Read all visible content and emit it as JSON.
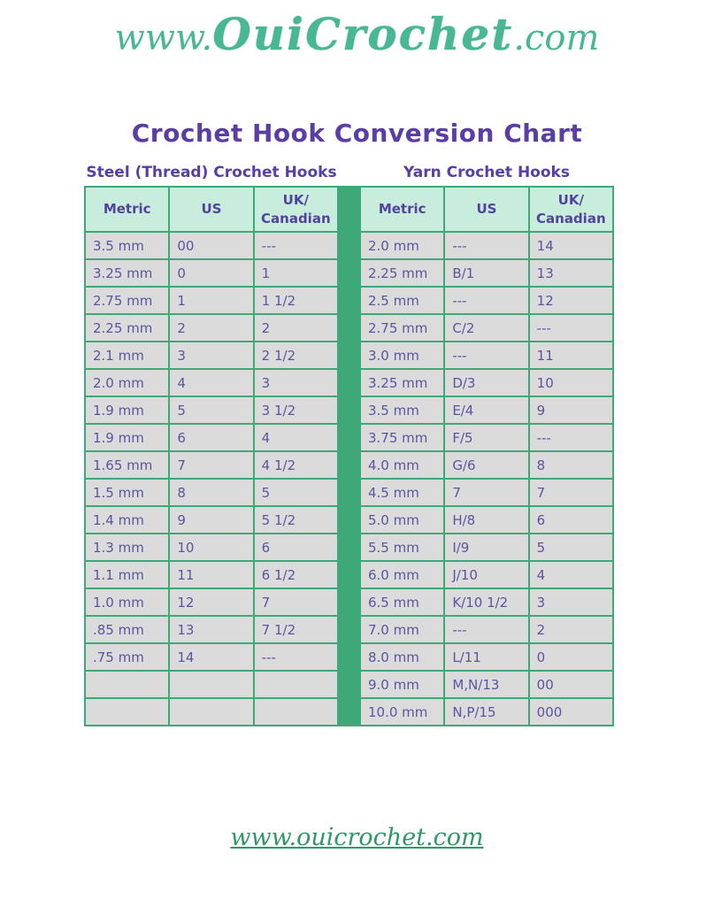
{
  "logo": {
    "www": "www.",
    "brand": "OuiCrochet",
    "com": ".com"
  },
  "title": "Crochet Hook Conversion Chart",
  "colors": {
    "green": "#3EA878",
    "mint": "#C9EDDC",
    "gray": "#DBDBDB",
    "purple": "#5A3DA5",
    "celltext": "#5B54A0",
    "headertext": "#52439E",
    "logoteal": "#47B794",
    "footergreen": "#2E9966"
  },
  "tables": [
    {
      "heading": "Steel (Thread) Crochet Hooks",
      "columns": [
        "Metric",
        "US",
        "UK/\nCanadian"
      ],
      "rows": [
        [
          "3.5 mm",
          "00",
          "---"
        ],
        [
          "3.25 mm",
          "0",
          "1"
        ],
        [
          "2.75 mm",
          "1",
          "1 1/2"
        ],
        [
          "2.25 mm",
          "2",
          "2"
        ],
        [
          "2.1 mm",
          "3",
          "2 1/2"
        ],
        [
          "2.0 mm",
          "4",
          "3"
        ],
        [
          "1.9 mm",
          "5",
          "3 1/2"
        ],
        [
          "1.9 mm",
          "6",
          "4"
        ],
        [
          "1.65 mm",
          "7",
          "4 1/2"
        ],
        [
          "1.5 mm",
          "8",
          "5"
        ],
        [
          "1.4 mm",
          "9",
          "5 1/2"
        ],
        [
          "1.3 mm",
          "10",
          "6"
        ],
        [
          "1.1 mm",
          "11",
          "6 1/2"
        ],
        [
          "1.0 mm",
          "12",
          "7"
        ],
        [
          ".85 mm",
          "13",
          "7 1/2"
        ],
        [
          ".75 mm",
          "14",
          "---"
        ],
        [
          "",
          "",
          ""
        ],
        [
          "",
          "",
          ""
        ]
      ]
    },
    {
      "heading": "Yarn Crochet Hooks",
      "columns": [
        "Metric",
        "US",
        "UK/\nCanadian"
      ],
      "rows": [
        [
          "2.0 mm",
          "---",
          "14"
        ],
        [
          "2.25 mm",
          "B/1",
          "13"
        ],
        [
          "2.5 mm",
          "---",
          "12"
        ],
        [
          "2.75 mm",
          "C/2",
          "---"
        ],
        [
          "3.0 mm",
          "---",
          "11"
        ],
        [
          "3.25 mm",
          "D/3",
          "10"
        ],
        [
          "3.5 mm",
          "E/4",
          "9"
        ],
        [
          "3.75 mm",
          "F/5",
          "---"
        ],
        [
          "4.0 mm",
          "G/6",
          "8"
        ],
        [
          "4.5 mm",
          "7",
          "7"
        ],
        [
          "5.0 mm",
          "H/8",
          "6"
        ],
        [
          "5.5 mm",
          "I/9",
          "5"
        ],
        [
          "6.0 mm",
          "J/10",
          "4"
        ],
        [
          "6.5 mm",
          "K/10 1/2",
          "3"
        ],
        [
          "7.0 mm",
          "---",
          "2"
        ],
        [
          "8.0 mm",
          "L/11",
          "0"
        ],
        [
          "9.0 mm",
          "M,N/13",
          "00"
        ],
        [
          "10.0 mm",
          "N,P/15",
          "000"
        ]
      ]
    }
  ],
  "footer": {
    "link": "www.ouicrochet.com"
  }
}
